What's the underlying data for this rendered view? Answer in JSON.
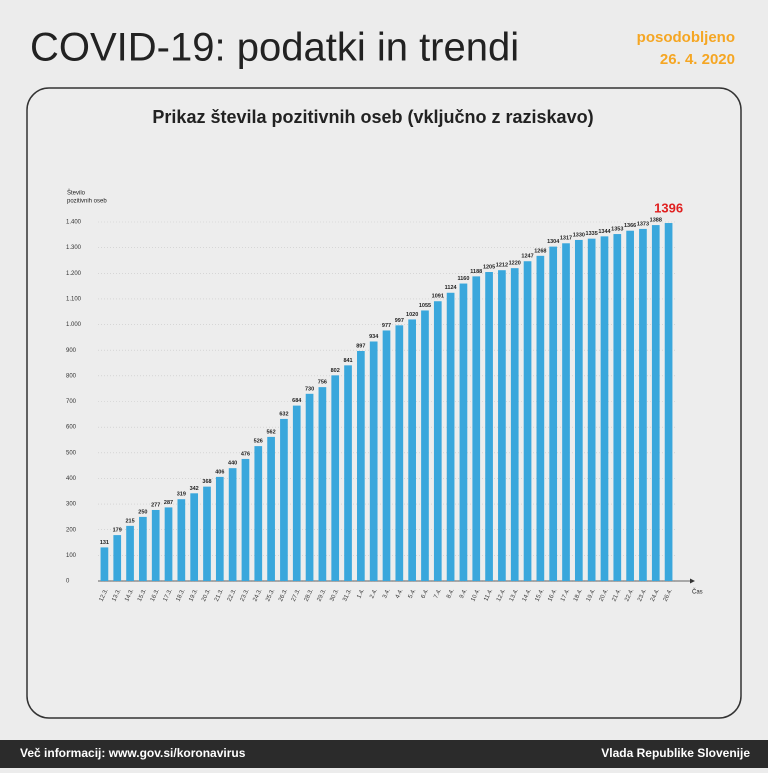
{
  "header": {
    "title": "COVID-19: podatki in trendi",
    "updated_label": "posodobljeno",
    "updated_date": "26. 4. 2020"
  },
  "chart_data": {
    "type": "bar",
    "title": "Prikaz števila pozitivnih oseb (vključno z raziskavo)",
    "y_label": [
      "Število",
      "pozitivnih oseb"
    ],
    "x_label": "Čas",
    "color": "#3aa7dc",
    "grid": true,
    "categories": [
      "12.3.",
      "13.3.",
      "14.3.",
      "15.3.",
      "16.3.",
      "17.3.",
      "18.3.",
      "19.3.",
      "20.3.",
      "21.3.",
      "22.3.",
      "23.3.",
      "24.3.",
      "25.3.",
      "26.3.",
      "27.3.",
      "28.3.",
      "29.3.",
      "30.3.",
      "31.3.",
      "1.4.",
      "2.4.",
      "3.4.",
      "4.4.",
      "5.4.",
      "6.4.",
      "7.4.",
      "8.4.",
      "9.4.",
      "10.4.",
      "11.4.",
      "12.4.",
      "13.4.",
      "14.4.",
      "15.4.",
      "16.4.",
      "17.4.",
      "18.4.",
      "19.4.",
      "20.4.",
      "21.4.",
      "22.4.",
      "23.4.",
      "24.4.",
      "26.4."
    ],
    "values": [
      131,
      179,
      215,
      250,
      277,
      287,
      319,
      342,
      368,
      406,
      440,
      476,
      526,
      562,
      632,
      684,
      730,
      756,
      802,
      841,
      897,
      934,
      977,
      997,
      1020,
      1055,
      1091,
      1124,
      1160,
      1188,
      1205,
      1212,
      1220,
      1247,
      1268,
      1304,
      1317,
      1330,
      1335,
      1344,
      1353,
      1366,
      1373,
      1388,
      1396
    ],
    "ylim": [
      0,
      1400
    ],
    "yticks": [
      0,
      100,
      200,
      300,
      400,
      500,
      600,
      700,
      800,
      900,
      {
        "value": 1000,
        "label": "1.000"
      },
      {
        "value": 1100,
        "label": "1.100"
      },
      {
        "value": 1200,
        "label": "1.200"
      },
      {
        "value": 1300,
        "label": "1.300"
      },
      {
        "value": 1400,
        "label": "1.400"
      }
    ]
  },
  "footer": {
    "left": "Več informacij: www.gov.si/koronavirus",
    "right": "Vlada Republike Slovenije"
  }
}
